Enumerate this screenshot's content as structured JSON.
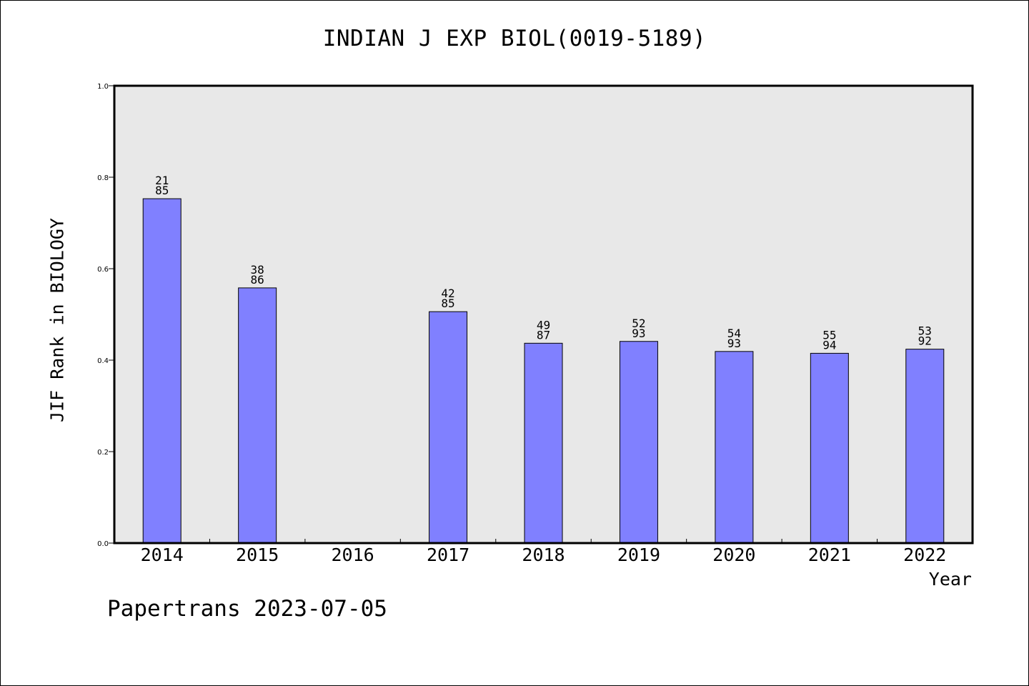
{
  "chart_data": {
    "type": "bar",
    "title": "INDIAN J EXP BIOL(0019-5189)",
    "xlabel": "Year",
    "ylabel": "JIF Rank in BIOLOGY",
    "categories": [
      "2014",
      "2015",
      "2016",
      "2017",
      "2018",
      "2019",
      "2020",
      "2021",
      "2022"
    ],
    "values": [
      0.753,
      0.558,
      null,
      0.506,
      0.437,
      0.441,
      0.419,
      0.415,
      0.424
    ],
    "data_labels": [
      [
        "21",
        "85"
      ],
      [
        "38",
        "86"
      ],
      null,
      [
        "42",
        "85"
      ],
      [
        "49",
        "87"
      ],
      [
        "52",
        "93"
      ],
      [
        "54",
        "93"
      ],
      [
        "55",
        "94"
      ],
      [
        "53",
        "92"
      ]
    ],
    "ylim": [
      0,
      1.0
    ],
    "yticks": [
      "0.0",
      "0.2",
      "0.4",
      "0.6",
      "0.8",
      "1.0"
    ],
    "grid": false,
    "colors": {
      "bar": "#8080ff",
      "plot_background": "#e8e8e8"
    }
  },
  "footer": {
    "note": "Papertrans 2023-07-05"
  }
}
